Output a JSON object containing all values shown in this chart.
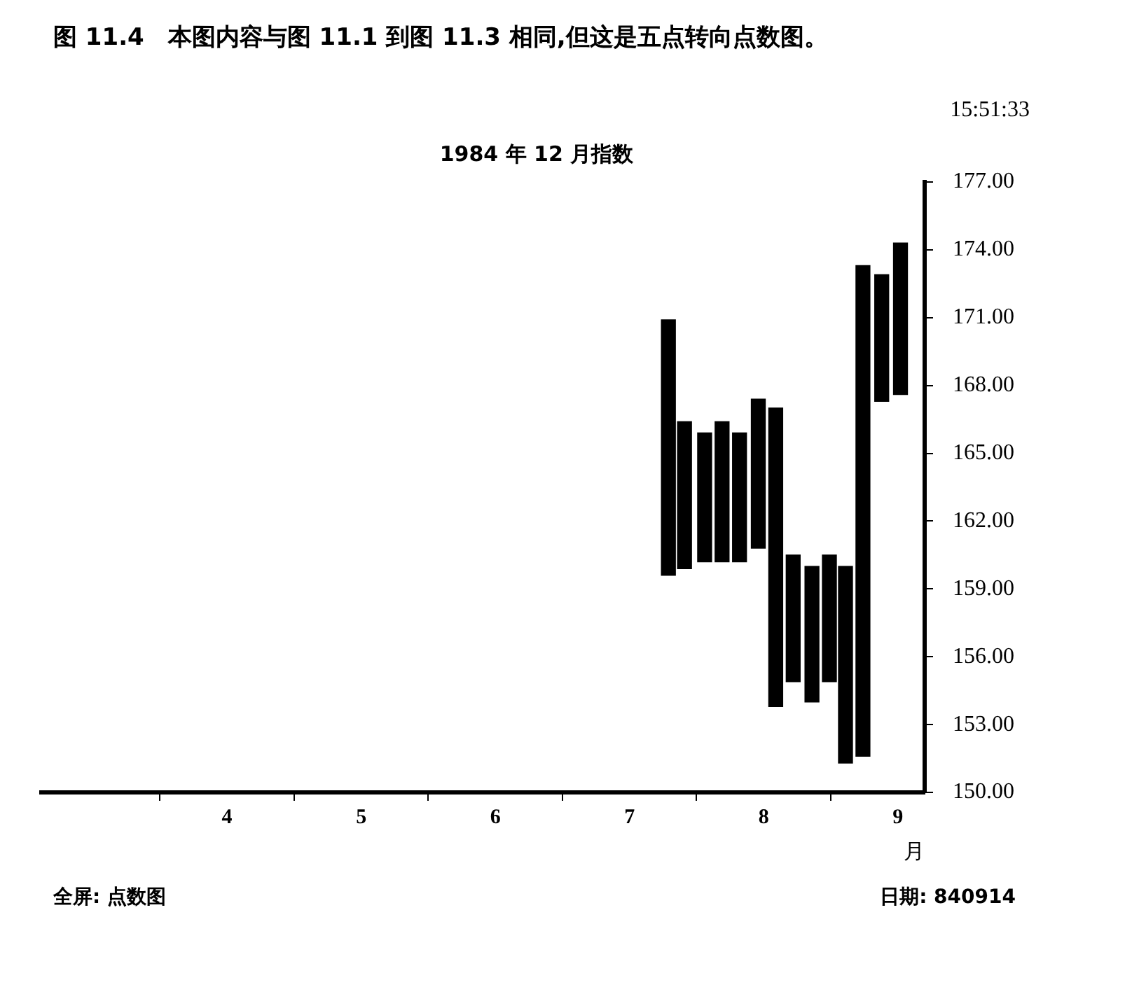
{
  "chart_data": {
    "type": "bar",
    "title": "图 11.4　本图内容与图 11.1 到图 11.3 相同,但这是五点转向点数图。",
    "subtitle": "1984 年 12 月指数",
    "xlabel": "月",
    "annotations": [
      "15:51:33",
      "全屏: 点数图",
      "日期: 840914"
    ],
    "series": [
      {
        "color": "#000000",
        "x": [
          7.29,
          7.56,
          7.82,
          8.09,
          8.36,
          8.61,
          8.88
        ],
        "base": [
          159.6,
          160.2,
          160.2,
          153.8,
          154.0,
          151.3,
          167.3
        ],
        "values": [
          11.3,
          5.7,
          5.7,
          13.2,
          6.0,
          8.7,
          5.6
        ]
      },
      {
        "color": "#000000",
        "x": [
          7.41,
          7.69,
          7.96,
          8.22,
          8.49,
          8.74,
          9.02
        ],
        "base": [
          159.9,
          160.2,
          160.8,
          154.9,
          154.9,
          151.6,
          167.6
        ],
        "values": [
          6.5,
          6.2,
          6.6,
          5.6,
          5.6,
          21.7,
          6.7
        ]
      }
    ],
    "xlim": [
      2.6,
      9.2
    ],
    "xticks": [
      4,
      5,
      6,
      7,
      8,
      9
    ],
    "ylim": [
      150,
      177
    ],
    "yticks": [
      {
        "value": 150,
        "label": "150.00"
      },
      {
        "value": 153,
        "label": "153.00"
      },
      {
        "value": 156,
        "label": "156.00"
      },
      {
        "value": 159,
        "label": "159.00"
      },
      {
        "value": 162,
        "label": "162.00"
      },
      {
        "value": 165,
        "label": "165.00"
      },
      {
        "value": 168,
        "label": "168.00"
      },
      {
        "value": 171,
        "label": "171.00"
      },
      {
        "value": 174,
        "label": "174.00"
      },
      {
        "value": 177,
        "label": "177.00"
      }
    ],
    "grid": false,
    "legend": false
  }
}
